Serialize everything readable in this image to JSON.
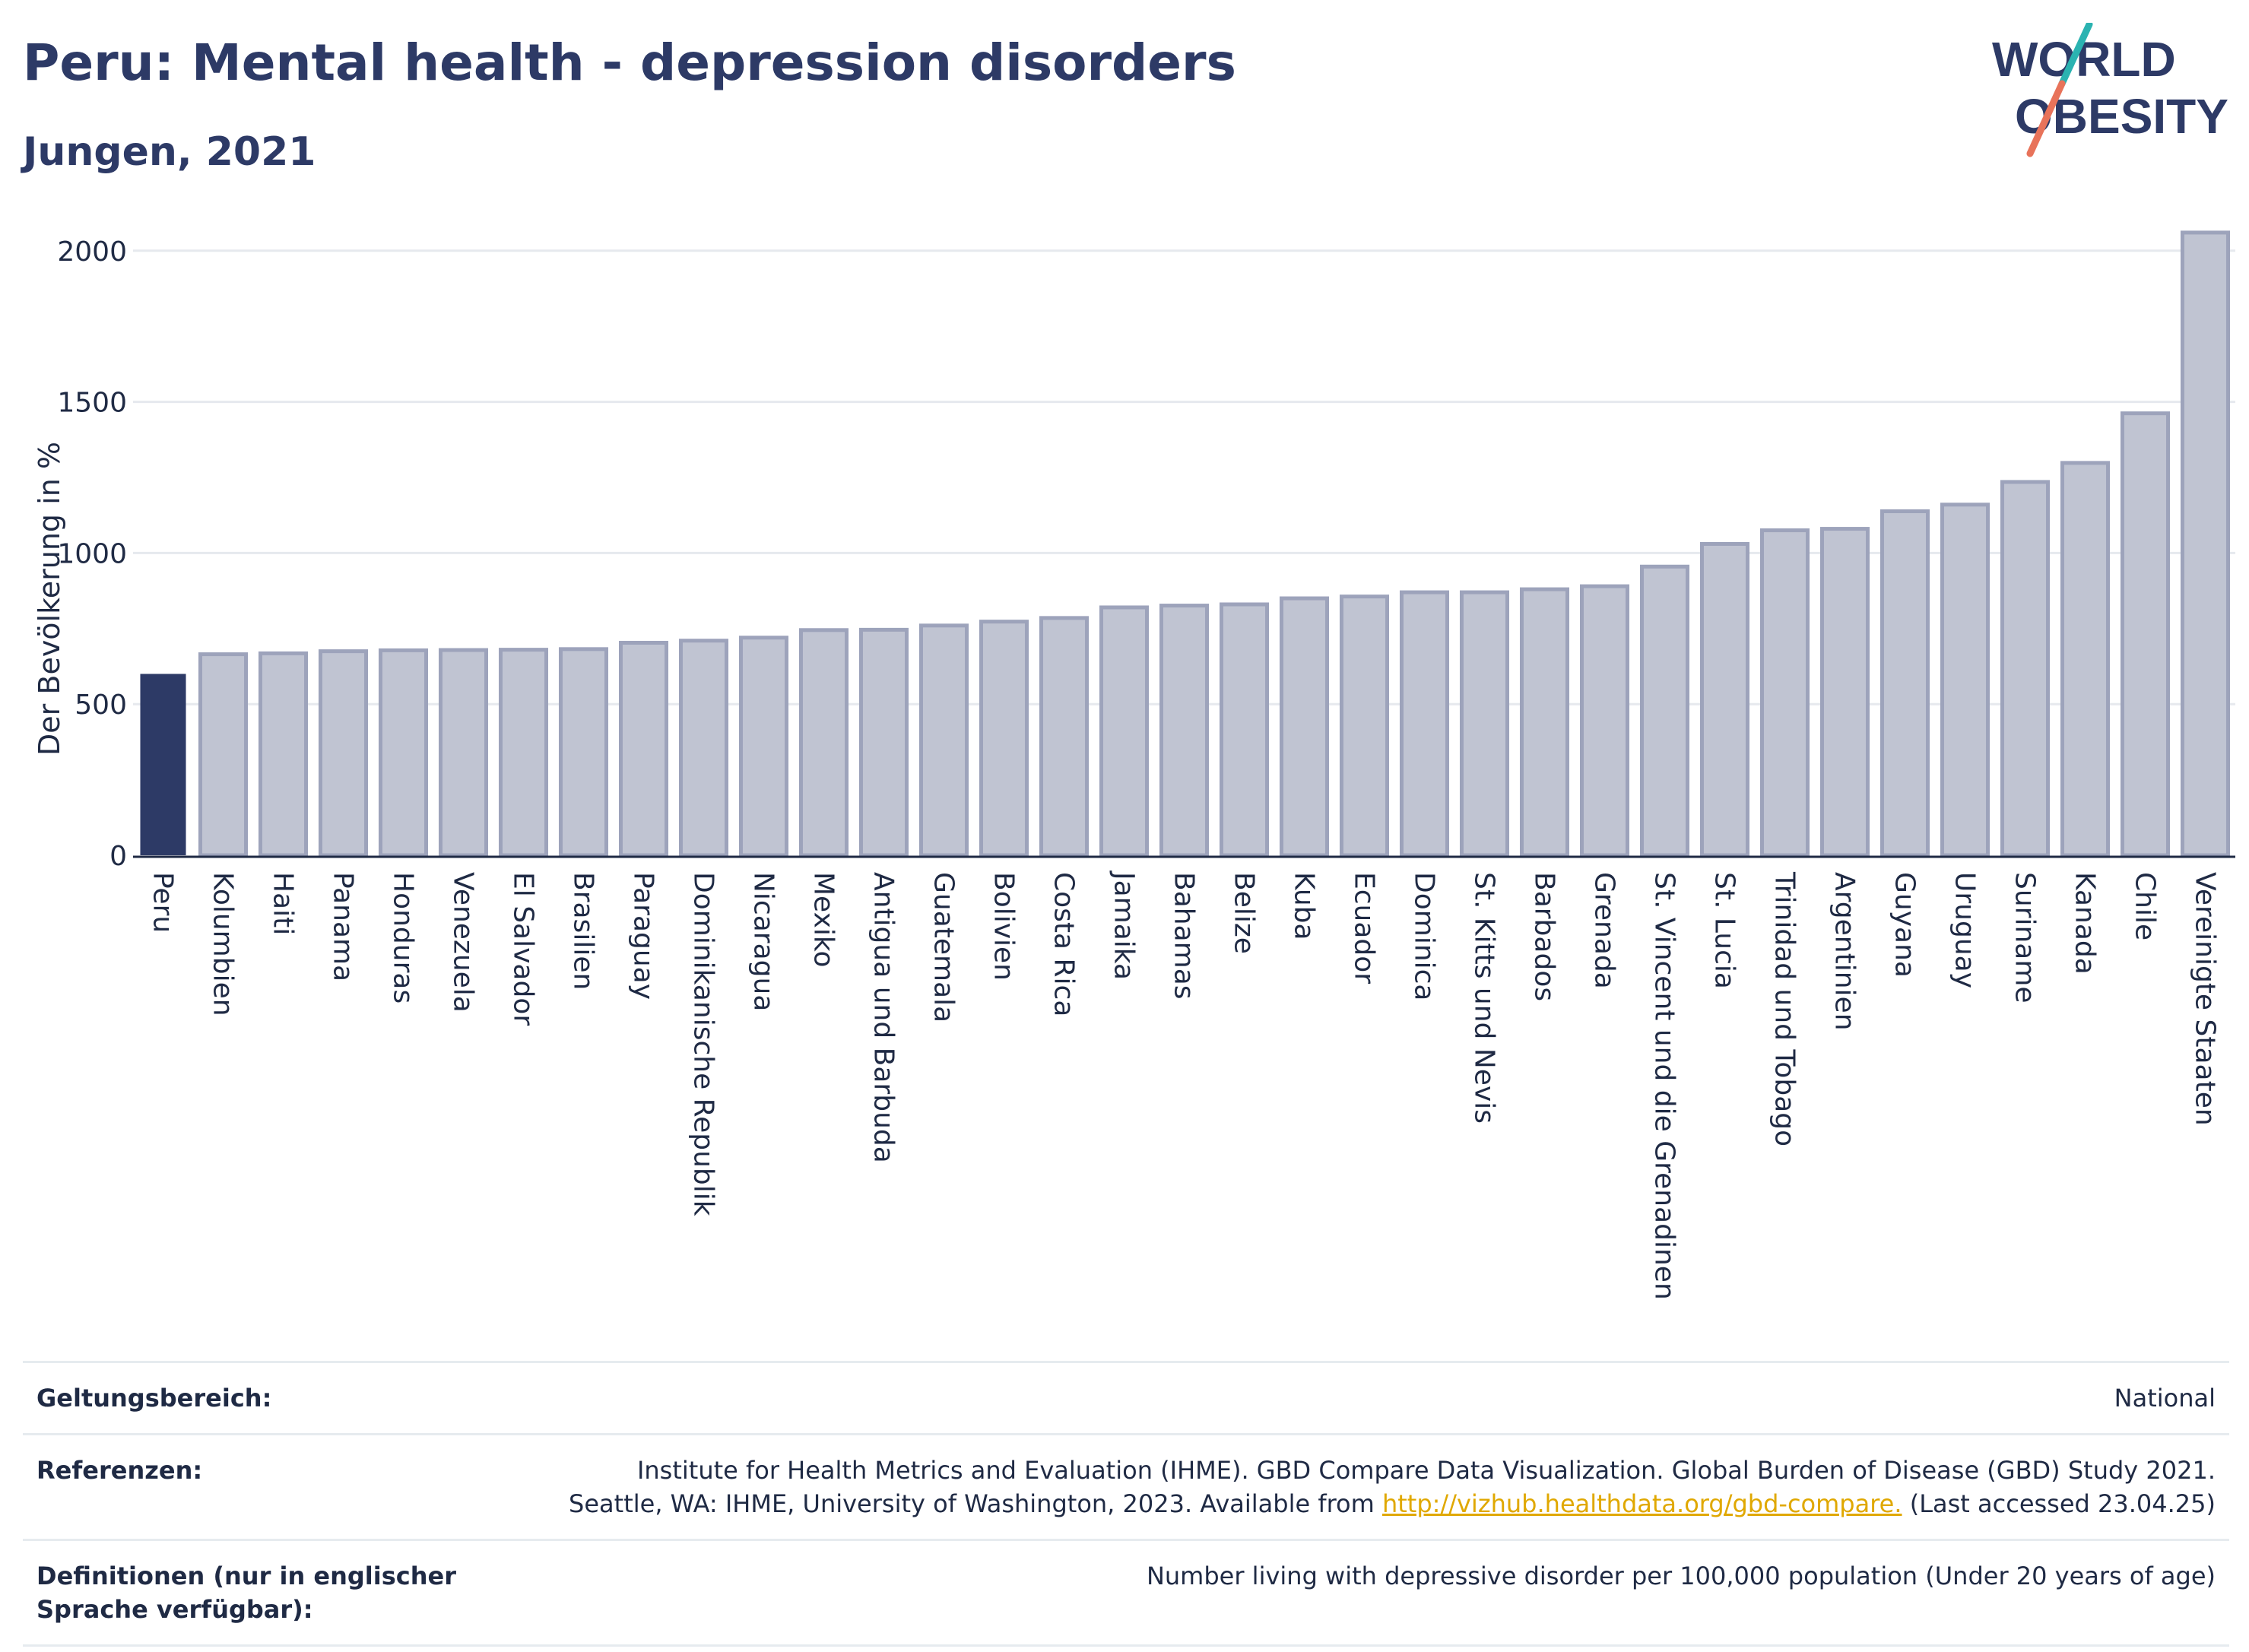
{
  "header": {
    "title": "Peru: Mental health - depression disorders",
    "subtitle": "Jungen, 2021"
  },
  "logo": {
    "line1": "WORLD",
    "line2": "OBESITY",
    "accent_colors": [
      "#2bb3b1",
      "#e8735a"
    ]
  },
  "colors": {
    "highlight_bar": "#2d3a66",
    "other_bars": "#c0c4d2",
    "other_bar_border": "#9da3bb",
    "grid": "#e6e9ee",
    "link": "#e0a800"
  },
  "chart_data": {
    "type": "bar",
    "title": "Peru: Mental health - depression disorders",
    "subtitle": "Jungen, 2021",
    "xlabel": "",
    "ylabel": "Der Bevölkerung in %",
    "ylim": [
      0,
      2100
    ],
    "yticks": [
      0,
      500,
      1000,
      1500,
      2000
    ],
    "grid": true,
    "highlight": "Peru",
    "categories": [
      "Peru",
      "Kolumbien",
      "Haiti",
      "Panama",
      "Honduras",
      "Venezuela",
      "El Salvador",
      "Brasilien",
      "Paraguay",
      "Dominikanische Republik",
      "Nicaragua",
      "Mexiko",
      "Antigua und Barbuda",
      "Guatemala",
      "Bolivien",
      "Costa Rica",
      "Jamaika",
      "Bahamas",
      "Belize",
      "Kuba",
      "Ecuador",
      "Dominica",
      "St. Kitts und Nevis",
      "Barbados",
      "Grenada",
      "St. Vincent und die Grenadinen",
      "St. Lucia",
      "Trinidad und Tobago",
      "Argentinien",
      "Guyana",
      "Uruguay",
      "Suriname",
      "Kanada",
      "Chile",
      "Vereinigte Staaten"
    ],
    "values": [
      600,
      665,
      668,
      675,
      678,
      679,
      680,
      682,
      703,
      710,
      720,
      745,
      746,
      760,
      773,
      785,
      820,
      826,
      830,
      850,
      856,
      870,
      870,
      880,
      890,
      955,
      1030,
      1075,
      1080,
      1138,
      1160,
      1235,
      1298,
      1462,
      2060
    ]
  },
  "info": {
    "scope_label": "Geltungsbereich:",
    "scope_value": "National",
    "references_label": "Referenzen:",
    "references_line1": "Institute for Health Metrics and Evaluation (IHME). GBD Compare Data Visualization. Global Burden of Disease (GBD) Study 2021.",
    "references_line2_prefix": "Seattle, WA: IHME, University of Washington, 2023. Available from",
    "references_link": "http://vizhub.healthdata.org/gbd-compare.",
    "references_line2_suffix": "(Last accessed 23.04.25)",
    "definitions_label": "Definitionen (nur in englischer Sprache verfügbar):",
    "definitions_value": "Number living with depressive disorder per 100,000 population (Under 20 years of age)"
  }
}
